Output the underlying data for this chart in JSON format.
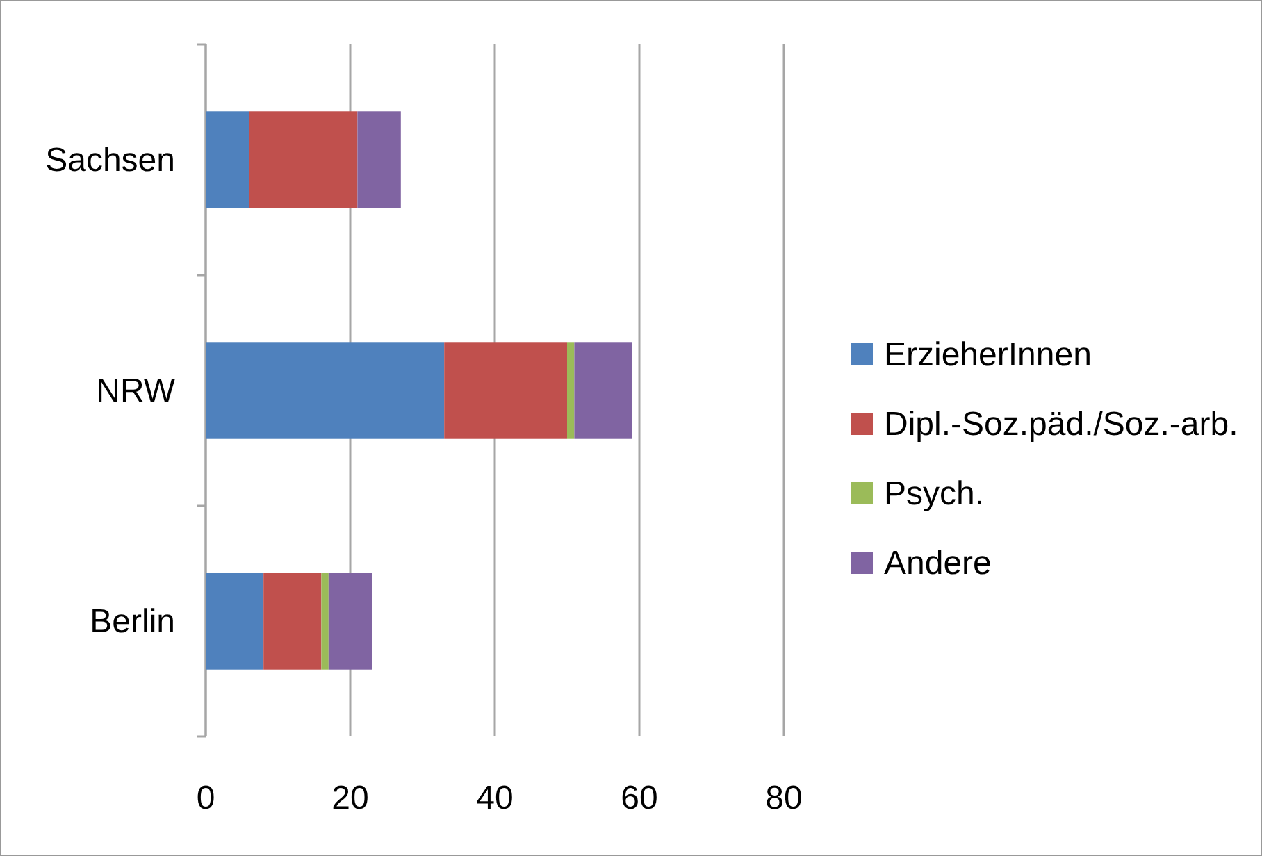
{
  "chart_data": {
    "type": "bar",
    "orientation": "horizontal",
    "stacked": true,
    "categories": [
      "Sachsen",
      "NRW",
      "Berlin"
    ],
    "series": [
      {
        "name": "ErzieherInnen",
        "color": "#4f81bd",
        "values": [
          6,
          33,
          8
        ]
      },
      {
        "name": "Dipl.-Soz.päd./Soz.-arb.",
        "color": "#c0504d",
        "values": [
          15,
          17,
          8
        ]
      },
      {
        "name": "Psych.",
        "color": "#9bbb59",
        "values": [
          0,
          1,
          1
        ]
      },
      {
        "name": "Andere",
        "color": "#8064a2",
        "values": [
          6,
          8,
          6
        ]
      }
    ],
    "xlim": [
      0,
      80
    ],
    "xticks": [
      0,
      20,
      40,
      60,
      80
    ],
    "grid": "x",
    "legend": "right"
  }
}
